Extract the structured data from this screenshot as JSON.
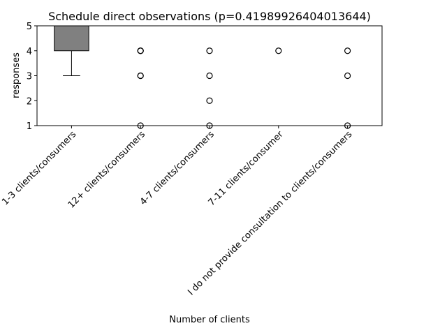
{
  "chart_data": {
    "type": "box",
    "title": "Schedule direct observations (p=0.41989926404013644)",
    "xlabel": "Number of clients",
    "ylabel": "responses",
    "ylim": [
      1,
      5
    ],
    "yticks": [
      1,
      2,
      3,
      4,
      5
    ],
    "grid": false,
    "categories": [
      "1-3 clients/consumers",
      "12+ clients/consumers",
      "4-7 clients/consumers",
      "7-11 clients/consumer",
      "I do not provide consultation to clients/consumers"
    ],
    "boxes": [
      {
        "q1": 4,
        "median": 5,
        "q3": 5,
        "whisker_low": 3,
        "whisker_high": 5,
        "fliers": []
      },
      {
        "q1": 5,
        "median": 5,
        "q3": 5,
        "whisker_low": 5,
        "whisker_high": 5,
        "fliers": [
          4,
          4,
          4,
          3,
          3,
          1
        ]
      },
      {
        "q1": 5,
        "median": 5,
        "q3": 5,
        "whisker_low": 5,
        "whisker_high": 5,
        "fliers": [
          4,
          3,
          2,
          1
        ]
      },
      {
        "q1": 5,
        "median": 5,
        "q3": 5,
        "whisker_low": 5,
        "whisker_high": 5,
        "fliers": [
          4
        ]
      },
      {
        "q1": 5,
        "median": 5,
        "q3": 5,
        "whisker_low": 5,
        "whisker_high": 5,
        "fliers": [
          4,
          3,
          1
        ]
      }
    ],
    "box_color": "#808080",
    "median_color": "#ff7f0e"
  }
}
